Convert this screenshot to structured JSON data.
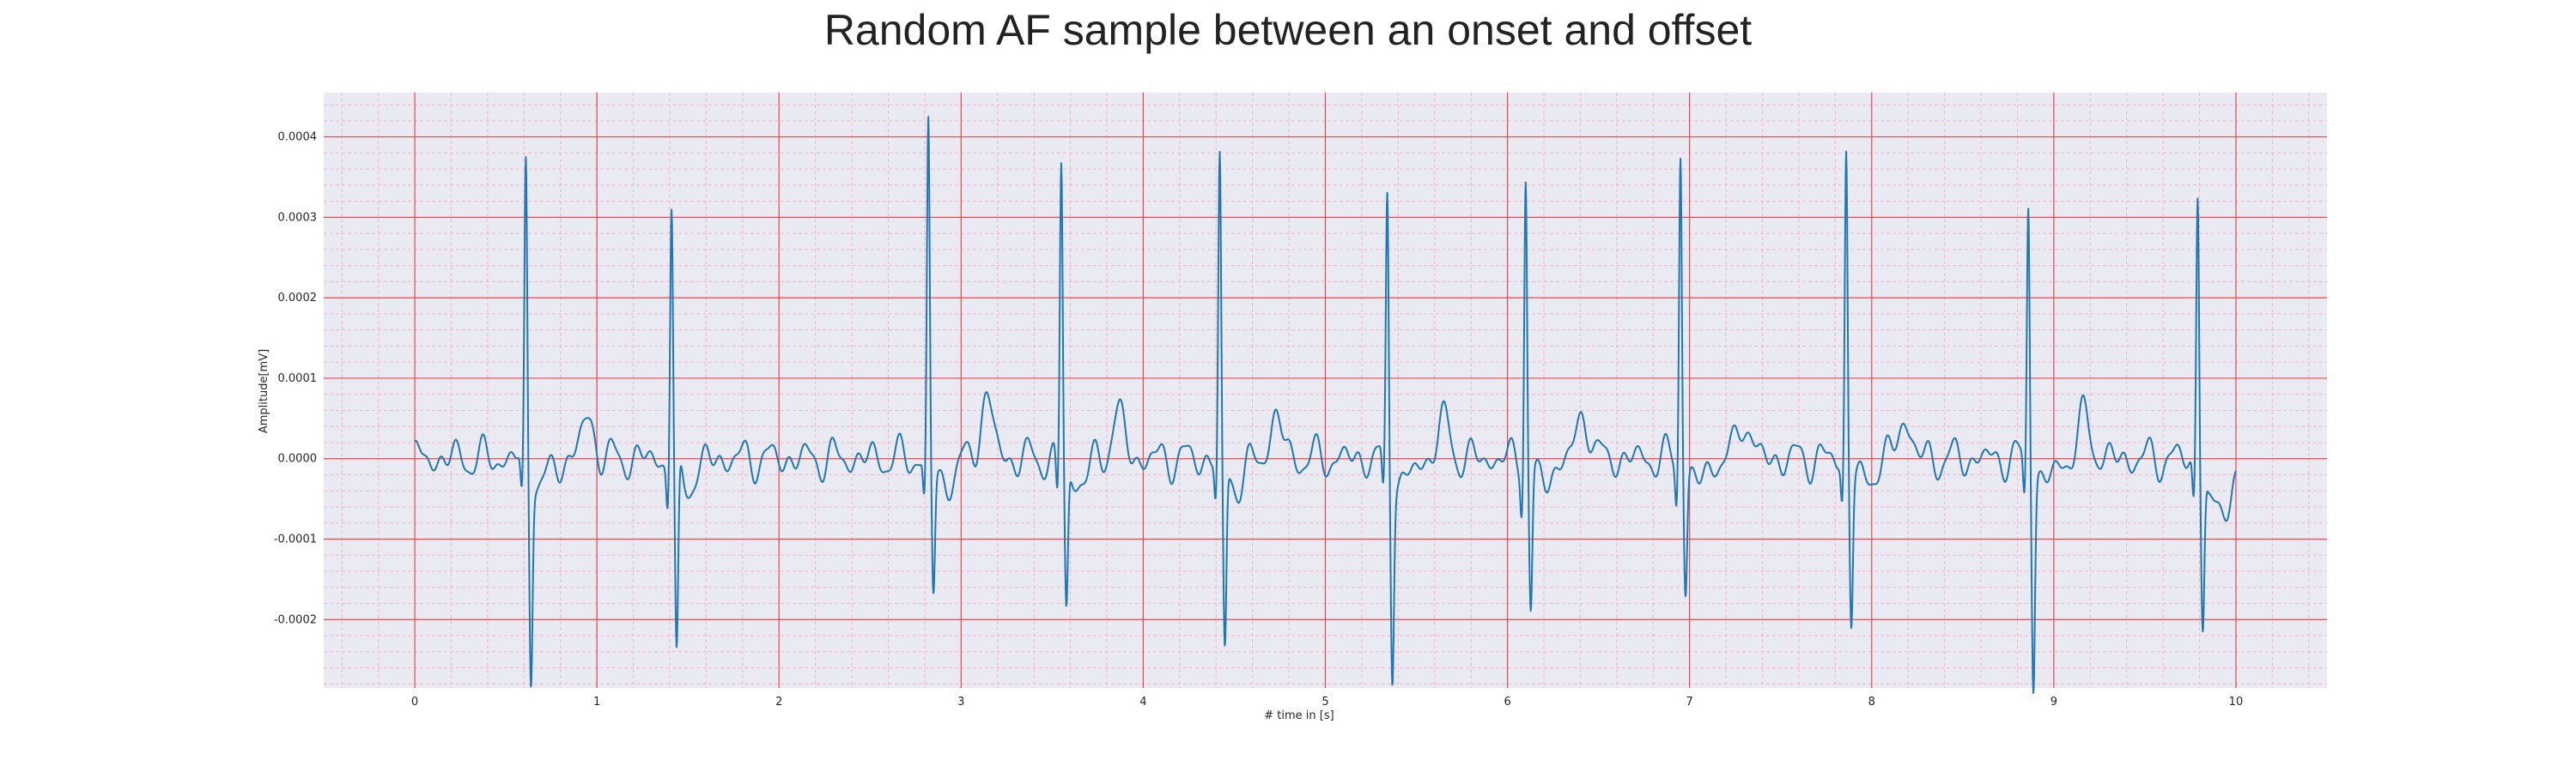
{
  "chart_data": {
    "type": "line",
    "title": "Random AF sample between an onset and offset",
    "xlabel": "# time in [s]",
    "ylabel": "Amplitude[mV]",
    "xlim": [
      -0.5,
      10.5
    ],
    "ylim": [
      -0.000285,
      0.000455
    ],
    "xticks": [
      0,
      1,
      2,
      3,
      4,
      5,
      6,
      7,
      8,
      9,
      10
    ],
    "xtick_labels": [
      "0",
      "1",
      "2",
      "3",
      "4",
      "5",
      "6",
      "7",
      "8",
      "9",
      "10"
    ],
    "yticks": [
      -0.0002,
      -0.0001,
      0.0,
      0.0001,
      0.0002,
      0.0003,
      0.0004
    ],
    "ytick_labels": [
      "-0.0002",
      "-0.0001",
      "0.0000",
      "0.0001",
      "0.0002",
      "0.0003",
      "0.0004"
    ],
    "grid": "major red, minor pink",
    "series": [
      {
        "color": "#1f77b4",
        "baseline_end": -3.5e-05,
        "beats": [
          {
            "t": 0.61,
            "peak": 0.00037,
            "trough": -0.00025
          },
          {
            "t": 1.41,
            "peak": 0.00032,
            "trough": -0.00025
          },
          {
            "t": 2.82,
            "peak": 0.00042,
            "trough": -0.000155
          },
          {
            "t": 3.55,
            "peak": 0.000375,
            "trough": -0.000175
          },
          {
            "t": 4.42,
            "peak": 0.000373,
            "trough": -0.00023
          },
          {
            "t": 5.34,
            "peak": 0.000333,
            "trough": -0.00024
          },
          {
            "t": 6.1,
            "peak": 0.000365,
            "trough": -0.000175
          },
          {
            "t": 6.95,
            "peak": 0.000395,
            "trough": -0.000145
          },
          {
            "t": 7.86,
            "peak": 0.00039,
            "trough": -0.000185
          },
          {
            "t": 8.86,
            "peak": 0.00033,
            "trough": -0.000255
          },
          {
            "t": 9.79,
            "peak": 0.000343,
            "trough": -0.00018
          }
        ],
        "waves": [
          {
            "t": 0.95,
            "amp": 5e-05
          },
          {
            "t": 3.14,
            "amp": 7.5e-05
          },
          {
            "t": 3.86,
            "amp": 5.5e-05
          },
          {
            "t": 4.73,
            "amp": 5e-05
          },
          {
            "t": 5.65,
            "amp": 4.5e-05
          },
          {
            "t": 6.42,
            "amp": 5.5e-05
          },
          {
            "t": 7.3,
            "amp": 5e-05
          },
          {
            "t": 8.18,
            "amp": 5e-05
          },
          {
            "t": 9.17,
            "amp": 5e-05
          }
        ]
      }
    ]
  }
}
